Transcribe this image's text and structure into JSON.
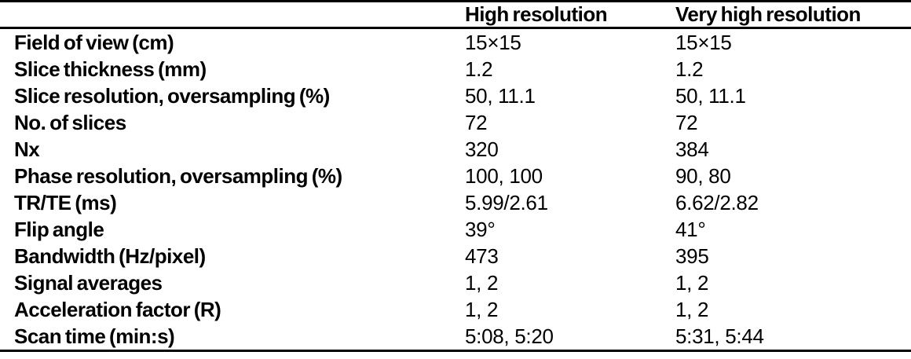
{
  "table": {
    "headers": [
      "",
      "High resolution",
      "Very high resolution"
    ],
    "rows": [
      {
        "label": "Field of view (cm)",
        "high": "15×15",
        "very_high": "15×15"
      },
      {
        "label": "Slice thickness (mm)",
        "high": "1.2",
        "very_high": "1.2"
      },
      {
        "label": "Slice resolution, oversampling (%)",
        "high": "50, 11.1",
        "very_high": "50, 11.1"
      },
      {
        "label": "No. of slices",
        "high": "72",
        "very_high": "72"
      },
      {
        "label": "Nx",
        "high": "320",
        "very_high": "384"
      },
      {
        "label": "Phase resolution, oversampling (%)",
        "high": "100, 100",
        "very_high": "90, 80"
      },
      {
        "label": "TR/TE (ms)",
        "high": "5.99/2.61",
        "very_high": "6.62/2.82"
      },
      {
        "label": "Flip angle",
        "high": "39°",
        "very_high": "41°"
      },
      {
        "label": "Bandwidth (Hz/pixel)",
        "high": "473",
        "very_high": "395"
      },
      {
        "label": "Signal averages",
        "high": "1, 2",
        "very_high": "1, 2"
      },
      {
        "label": "Acceleration factor (R)",
        "high": "1, 2",
        "very_high": "1, 2"
      },
      {
        "label": "Scan time (min:s)",
        "high": "5:08, 5:20",
        "very_high": "5:31, 5:44"
      }
    ]
  }
}
